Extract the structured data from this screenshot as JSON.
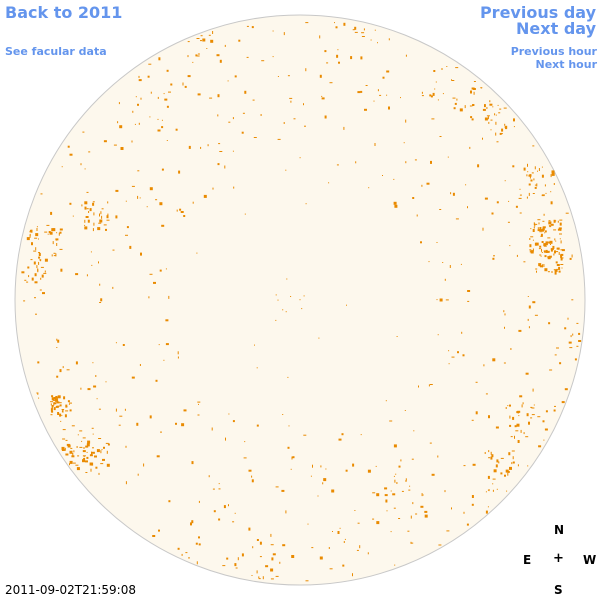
{
  "nav": {
    "back_label": "Back to 2011",
    "facular_label": "See facular data",
    "prev_day_label": "Previous day",
    "next_day_label": "Next day",
    "prev_hour_label": "Previous hour",
    "next_hour_label": "Next hour"
  },
  "compass": {
    "north": "N",
    "south": "S",
    "east": "E",
    "west": "W",
    "center": "+"
  },
  "timestamp": "2011-09-02T21:59:08",
  "colors": {
    "link": "#6495ed",
    "disk_fill": "#fdf8ed",
    "disk_outline": "#c8c8c8",
    "facula": "#e98a00"
  }
}
